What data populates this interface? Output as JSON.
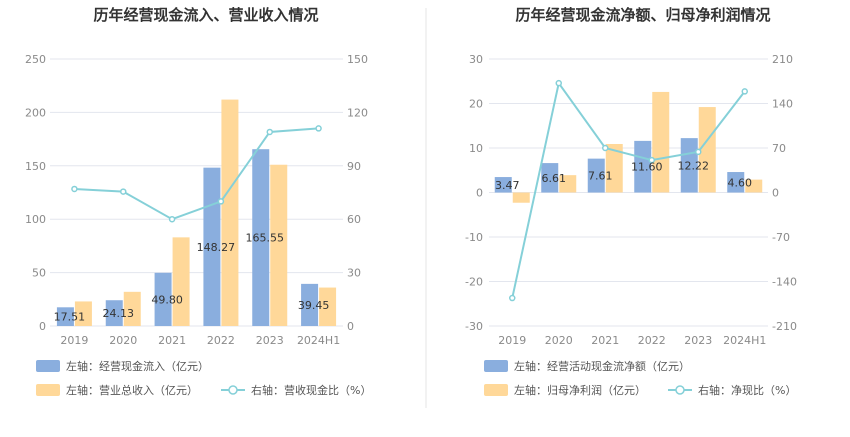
{
  "colors": {
    "bar_blue": "#8aaede",
    "bar_yellow": "#ffd899",
    "line": "#85d0d8",
    "grid": "#e3e6ee",
    "divider": "#e5e5e5"
  },
  "chart_data": [
    {
      "type": "bar",
      "title": "历年经营现金流入、营业收入情况",
      "categories": [
        "2019",
        "2020",
        "2021",
        "2022",
        "2023",
        "2024H1"
      ],
      "left_axis": {
        "ylim": [
          0,
          250
        ],
        "ticks": [
          "0",
          "50",
          "100",
          "150",
          "200",
          "250"
        ]
      },
      "right_axis": {
        "ylim": [
          0,
          150
        ],
        "ticks": [
          "0",
          "30",
          "60",
          "90",
          "120",
          "150"
        ]
      },
      "grid": true,
      "series": [
        {
          "name": "左轴：经营现金流入（亿元）",
          "kind": "bar",
          "axis": "left",
          "color": "#8aaede",
          "values": [
            17.51,
            24.13,
            49.8,
            148.27,
            165.55,
            39.45
          ],
          "labels": [
            "17.51",
            "24.13",
            "49.80",
            "148.27",
            "165.55",
            "39.45"
          ]
        },
        {
          "name": "左轴：营业总收入（亿元）",
          "kind": "bar",
          "axis": "left",
          "color": "#ffd899",
          "values": [
            23,
            32,
            83,
            212,
            151,
            36
          ]
        },
        {
          "name": "右轴：营收现金比（%）",
          "kind": "line",
          "axis": "right",
          "color": "#85d0d8",
          "values": [
            77,
            75.5,
            60,
            70,
            109,
            111
          ]
        }
      ],
      "legend_position": "bottom-left"
    },
    {
      "type": "bar",
      "title": "历年经营现金流净额、归母净利润情况",
      "categories": [
        "2019",
        "2020",
        "2021",
        "2022",
        "2023",
        "2024H1"
      ],
      "left_axis": {
        "ylim": [
          -30,
          30
        ],
        "ticks": [
          "-30",
          "-20",
          "-10",
          "0",
          "10",
          "20",
          "30"
        ]
      },
      "right_axis": {
        "ylim": [
          -210,
          210
        ],
        "ticks": [
          "-210",
          "-140",
          "-70",
          "0",
          "70",
          "140",
          "210"
        ]
      },
      "grid": true,
      "series": [
        {
          "name": "左轴：经营活动现金流净额（亿元）",
          "kind": "bar",
          "axis": "left",
          "color": "#8aaede",
          "values": [
            3.47,
            6.61,
            7.61,
            11.6,
            12.22,
            4.6
          ],
          "labels": [
            "3.47",
            "6.61",
            "7.61",
            "11.60",
            "12.22",
            "4.60"
          ]
        },
        {
          "name": "左轴：归母净利润（亿元）",
          "kind": "bar",
          "axis": "left",
          "color": "#ffd899",
          "values": [
            -2.3,
            3.9,
            10.9,
            22.6,
            19.2,
            2.9
          ]
        },
        {
          "name": "右轴：净现比（%）",
          "kind": "line",
          "axis": "right",
          "color": "#85d0d8",
          "values": [
            -166,
            172,
            70,
            51,
            64,
            159
          ]
        }
      ],
      "legend_position": "bottom-left"
    }
  ]
}
